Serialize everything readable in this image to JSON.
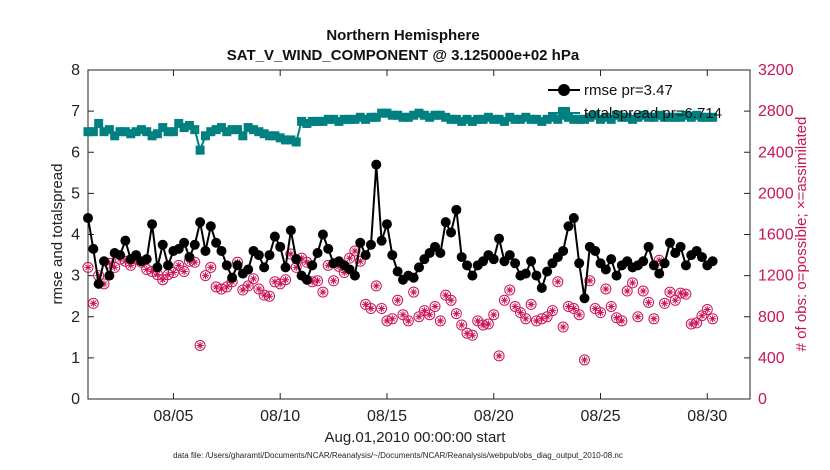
{
  "chart_data": {
    "type": "line",
    "title_line1": "Northern Hemisphere",
    "title_line2": "SAT_V_WIND_COMPONENT @ 3.125000e+02 hPa",
    "xlabel": "Aug.01,2010 00:00:00 start",
    "ylabel_left": "rmse and totalspread",
    "ylabel_right": "# of obs: o=possible; ×=assimilated",
    "footnote": "data file: /Users/gharamti/Documents/NCAR/Reanalysis/~/Documents/NCAR/Reanalysis/webpub/obs_diag_output_2010-08.nc",
    "xlim": [
      1.0,
      32.0
    ],
    "ylim_left": [
      0,
      8
    ],
    "ylim_right": [
      0,
      3200
    ],
    "yticks_left": [
      "0",
      "1",
      "2",
      "3",
      "4",
      "5",
      "6",
      "7",
      "8"
    ],
    "yticks_right": [
      "0",
      "400",
      "800",
      "1200",
      "1600",
      "2000",
      "2400",
      "2800",
      "3200"
    ],
    "xticks": [
      {
        "value": 5,
        "label": "08/05"
      },
      {
        "value": 10,
        "label": "08/10"
      },
      {
        "value": 15,
        "label": "08/15"
      },
      {
        "value": 20,
        "label": "08/20"
      },
      {
        "value": 25,
        "label": "08/25"
      },
      {
        "value": 30,
        "label": "08/30"
      }
    ],
    "legend": [
      {
        "name": "rmse",
        "label": "rmse pr=3.47",
        "color": "#000000"
      },
      {
        "name": "totalspread",
        "label": "totalspread pr=6.714",
        "color": "#008080"
      }
    ],
    "colors": {
      "obs": "#c8155a",
      "rmse": "#000000",
      "spread": "#008080"
    },
    "rmse": [
      4.4,
      3.65,
      2.8,
      3.35,
      3.0,
      3.55,
      3.5,
      3.85,
      3.4,
      3.5,
      3.35,
      3.4,
      4.25,
      3.2,
      3.75,
      3.25,
      3.6,
      3.65,
      3.8,
      3.45,
      3.75,
      4.3,
      3.6,
      4.2,
      3.8,
      3.6,
      3.25,
      2.95,
      3.25,
      3.05,
      3.15,
      3.6,
      3.5,
      3.2,
      3.5,
      3.95,
      3.7,
      3.2,
      4.1,
      3.4,
      3.0,
      2.9,
      3.25,
      3.55,
      4.0,
      3.65,
      3.3,
      3.35,
      3.25,
      3.15,
      3.0,
      3.8,
      3.5,
      3.75,
      5.7,
      3.85,
      4.25,
      3.5,
      3.1,
      2.9,
      3.0,
      2.95,
      3.2,
      3.4,
      3.55,
      3.7,
      3.55,
      4.3,
      4.05,
      4.6,
      3.45,
      3.25,
      3.0,
      3.25,
      3.35,
      3.5,
      3.4,
      3.9,
      3.35,
      3.5,
      3.3,
      3.0,
      3.05,
      3.35,
      3.0,
      2.7,
      3.1,
      3.3,
      3.45,
      3.6,
      4.2,
      4.4,
      3.3,
      2.45,
      3.7,
      3.6,
      3.3,
      3.15,
      3.4,
      3.0,
      3.25,
      3.35,
      3.2,
      3.25,
      3.35,
      3.7,
      3.25,
      3.05,
      3.3,
      3.8,
      3.55,
      3.7,
      3.25,
      3.5,
      3.6,
      3.45,
      3.25,
      3.35
    ],
    "totalspread": [
      6.5,
      6.5,
      6.7,
      6.5,
      6.55,
      6.4,
      6.5,
      6.5,
      6.45,
      6.5,
      6.55,
      6.5,
      6.4,
      6.45,
      6.6,
      6.5,
      6.5,
      6.7,
      6.6,
      6.65,
      6.55,
      6.05,
      6.4,
      6.5,
      6.55,
      6.6,
      6.5,
      6.55,
      6.55,
      6.4,
      6.6,
      6.55,
      6.5,
      6.45,
      6.4,
      6.4,
      6.35,
      6.3,
      6.3,
      6.25,
      6.75,
      6.7,
      6.75,
      6.75,
      6.75,
      6.8,
      6.8,
      6.75,
      6.8,
      6.8,
      6.8,
      6.85,
      6.8,
      6.85,
      6.85,
      6.95,
      6.95,
      6.9,
      6.9,
      6.85,
      6.85,
      6.9,
      6.95,
      6.9,
      6.85,
      6.9,
      6.9,
      6.85,
      6.8,
      6.8,
      6.75,
      6.8,
      6.75,
      6.8,
      6.8,
      6.85,
      6.8,
      6.8,
      6.75,
      6.85,
      6.8,
      6.8,
      6.85,
      6.8,
      6.8,
      6.75,
      6.8,
      6.85,
      6.8,
      6.9,
      6.85,
      6.8,
      6.8,
      6.8,
      6.85,
      6.9,
      6.8,
      6.85,
      6.8,
      6.9,
      6.85,
      6.85,
      6.8,
      6.85,
      6.9,
      6.85,
      6.85,
      6.9,
      6.85,
      6.85,
      6.85,
      6.85,
      6.9,
      6.85,
      6.9,
      6.85,
      6.85,
      6.85
    ],
    "obs_count": [
      1280,
      930,
      1200,
      1120,
      1320,
      1280,
      1360,
      1340,
      1300,
      1360,
      1330,
      1260,
      1240,
      1210,
      1160,
      1210,
      1230,
      1300,
      1240,
      1340,
      1330,
      520,
      1200,
      1280,
      1090,
      1070,
      1090,
      1140,
      1330,
      1060,
      1100,
      1170,
      1070,
      1010,
      1000,
      1140,
      1120,
      1160,
      1410,
      1280,
      1370,
      1330,
      1140,
      1150,
      1040,
      1300,
      1150,
      1290,
      1230,
      1370,
      1440,
      1340,
      920,
      880,
      1100,
      880,
      760,
      780,
      960,
      820,
      760,
      1040,
      800,
      860,
      820,
      900,
      760,
      1010,
      960,
      830,
      720,
      640,
      620,
      760,
      720,
      730,
      820,
      420,
      960,
      1060,
      900,
      840,
      780,
      920,
      760,
      780,
      800,
      860,
      1140,
      700,
      900,
      880,
      820,
      380,
      1150,
      880,
      840,
      1070,
      900,
      790,
      760,
      1050,
      1130,
      800,
      1050,
      940,
      780,
      1350,
      930,
      1040,
      960,
      1030,
      1020,
      730,
      740,
      810,
      870,
      780
    ]
  }
}
